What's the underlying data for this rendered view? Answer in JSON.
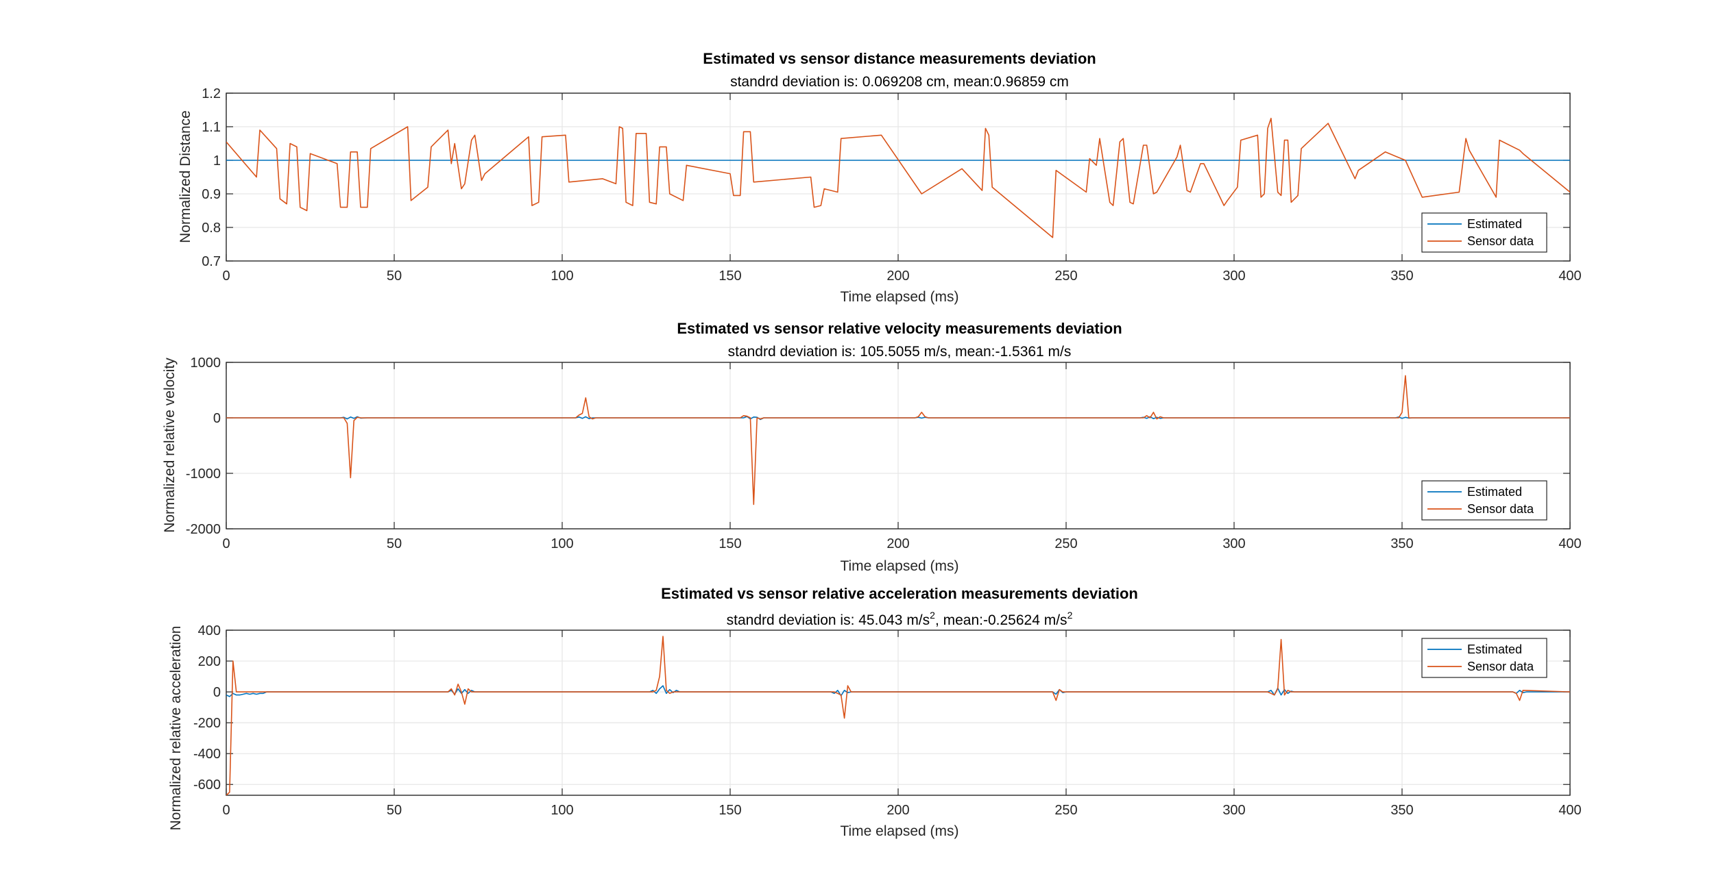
{
  "colors": {
    "estimated": "#0072BD",
    "sensor": "#D95319",
    "grid": "#e6e6e6",
    "axis": "#262626"
  },
  "chart_data": [
    {
      "type": "line",
      "title": "Estimated vs sensor distance measurements deviation",
      "subtitle": {
        "text": "standrd deviation is: 0.069208 cm, mean:0.96859 cm"
      },
      "xlabel": "Time elapsed (ms)",
      "ylabel": "Normalized Distance",
      "xlim": [
        0,
        400
      ],
      "ylim": [
        0.7,
        1.2
      ],
      "xticks": [
        0,
        50,
        100,
        150,
        200,
        250,
        300,
        350,
        400
      ],
      "xtick_labels": [
        "0",
        "50",
        "100",
        "150",
        "200",
        "250",
        "300",
        "350",
        "400"
      ],
      "yticks": [
        0.7,
        0.8,
        0.9,
        1,
        1.1,
        1.2
      ],
      "ytick_labels": [
        "0.7",
        "0.8",
        "0.9",
        "1",
        "1.1",
        "1.2"
      ],
      "grid": true,
      "legend": "bottom-right",
      "series": [
        {
          "name": "Estimated",
          "x": [
            0,
            400
          ],
          "y": [
            1,
            1
          ]
        },
        {
          "name": "Sensor data",
          "x": [
            0,
            9,
            10,
            15,
            16,
            18,
            19,
            21,
            22,
            24,
            25,
            33,
            34,
            36,
            37,
            39,
            40,
            42,
            43,
            54,
            55,
            60,
            61,
            66,
            67,
            68,
            70,
            71,
            73,
            74,
            76,
            77,
            90,
            91,
            93,
            94,
            101,
            102,
            112,
            116,
            117,
            118,
            119,
            121,
            122,
            125,
            126,
            128,
            129,
            131,
            132,
            136,
            137,
            150,
            151,
            153,
            154,
            156,
            157,
            174,
            175,
            177,
            178,
            182,
            183,
            195,
            207,
            219,
            225,
            226,
            227,
            228,
            246,
            247,
            256,
            257,
            259,
            260,
            263,
            264,
            266,
            267,
            269,
            270,
            273,
            274,
            276,
            277,
            283,
            284,
            286,
            287,
            290,
            291,
            297,
            298,
            301,
            302,
            307,
            308,
            309,
            310,
            311,
            313,
            314,
            315,
            316,
            317,
            319,
            320,
            328,
            336,
            337,
            345,
            351,
            356,
            367,
            369,
            370,
            378,
            379,
            385,
            386,
            400
          ],
          "y": [
            1.055,
            0.95,
            1.09,
            1.035,
            0.885,
            0.87,
            1.05,
            1.04,
            0.86,
            0.85,
            1.02,
            0.99,
            0.86,
            0.86,
            1.025,
            1.025,
            0.86,
            0.86,
            1.035,
            1.1,
            0.88,
            0.92,
            1.04,
            1.09,
            0.99,
            1.05,
            0.915,
            0.93,
            1.06,
            1.075,
            0.94,
            0.96,
            1.07,
            0.865,
            0.875,
            1.07,
            1.075,
            0.935,
            0.945,
            0.93,
            1.1,
            1.095,
            0.875,
            0.865,
            1.08,
            1.08,
            0.875,
            0.87,
            1.04,
            1.04,
            0.9,
            0.88,
            0.985,
            0.96,
            0.895,
            0.895,
            1.085,
            1.085,
            0.935,
            0.95,
            0.86,
            0.865,
            0.915,
            0.905,
            1.065,
            1.075,
            0.9,
            0.975,
            0.91,
            1.095,
            1.075,
            0.92,
            0.77,
            0.97,
            0.905,
            1.005,
            0.985,
            1.065,
            0.875,
            0.865,
            1.055,
            1.065,
            0.875,
            0.87,
            1.045,
            1.045,
            0.9,
            0.905,
            1.01,
            1.045,
            0.91,
            0.905,
            0.99,
            0.99,
            0.865,
            0.88,
            0.92,
            1.06,
            1.075,
            0.89,
            0.9,
            1.095,
            1.125,
            0.905,
            0.895,
            1.06,
            1.06,
            0.875,
            0.895,
            1.035,
            1.11,
            0.945,
            0.97,
            1.025,
            1.0,
            0.89,
            0.905,
            1.065,
            1.03,
            0.89,
            1.06,
            1.03,
            1.02,
            0.905
          ]
        }
      ]
    },
    {
      "type": "line",
      "title": "Estimated vs sensor relative velocity measurements deviation",
      "subtitle": {
        "text": "standrd deviation is: 105.5055 m/s, mean:-1.5361 m/s"
      },
      "xlabel": "Time elapsed (ms)",
      "ylabel": "Normalized relative velocity",
      "xlim": [
        0,
        400
      ],
      "ylim": [
        -2000,
        1000
      ],
      "xticks": [
        0,
        50,
        100,
        150,
        200,
        250,
        300,
        350,
        400
      ],
      "xtick_labels": [
        "0",
        "50",
        "100",
        "150",
        "200",
        "250",
        "300",
        "350",
        "400"
      ],
      "yticks": [
        -2000,
        -1000,
        0,
        1000
      ],
      "ytick_labels": [
        "-2000",
        "-1000",
        "0",
        "1000"
      ],
      "grid": true,
      "legend": "bottom-right",
      "series": [
        {
          "name": "Estimated",
          "x": [
            0,
            34,
            35,
            36,
            37,
            38,
            39,
            40,
            42,
            104,
            105,
            106,
            107,
            108,
            109,
            154,
            155,
            156,
            157,
            158,
            159,
            160,
            205,
            206,
            207,
            208,
            209,
            272,
            273,
            274,
            275,
            276,
            277,
            278,
            279,
            280,
            348,
            349,
            350,
            351,
            352,
            353,
            400
          ],
          "y": [
            0,
            0,
            10,
            -20,
            15,
            -10,
            20,
            -5,
            0,
            0,
            15,
            -10,
            20,
            -15,
            0,
            0,
            25,
            -20,
            15,
            10,
            -30,
            0,
            0,
            10,
            -5,
            10,
            0,
            0,
            10,
            -10,
            20,
            -15,
            10,
            -10,
            0,
            0,
            0,
            15,
            -10,
            10,
            -5,
            0,
            0
          ]
        },
        {
          "name": "Sensor data",
          "x": [
            0,
            35,
            36,
            37,
            38,
            39,
            40,
            104,
            105,
            106,
            107,
            108,
            109,
            110,
            153,
            154,
            155,
            156,
            157,
            158,
            159,
            160,
            205,
            206,
            207,
            208,
            209,
            273,
            274,
            275,
            276,
            277,
            278,
            279,
            348,
            349,
            350,
            351,
            352,
            353,
            400
          ],
          "y": [
            0,
            0,
            -100,
            -1080,
            -50,
            10,
            0,
            0,
            50,
            80,
            360,
            20,
            -20,
            0,
            0,
            40,
            30,
            0,
            -1560,
            0,
            -20,
            0,
            0,
            20,
            100,
            20,
            0,
            0,
            40,
            0,
            100,
            -20,
            20,
            0,
            0,
            0,
            100,
            760,
            0,
            0,
            0
          ]
        }
      ]
    },
    {
      "type": "line",
      "title": "Estimated vs sensor relative acceleration measurements deviation",
      "subtitle": {
        "text_before": "standrd deviation is: 45.043 m/s",
        "text_middle": ", mean:-0.25624 m/s",
        "superscript": "2"
      },
      "xlabel": "Time elapsed (ms)",
      "ylabel": "Normalized relative acceleration",
      "xlim": [
        0,
        400
      ],
      "ylim": [
        -670,
        400
      ],
      "xticks": [
        0,
        50,
        100,
        150,
        200,
        250,
        300,
        350,
        400
      ],
      "xtick_labels": [
        "0",
        "50",
        "100",
        "150",
        "200",
        "250",
        "300",
        "350",
        "400"
      ],
      "yticks": [
        -600,
        -400,
        -200,
        0,
        200,
        400
      ],
      "ytick_labels": [
        "-600",
        "-400",
        "-200",
        "0",
        "200",
        "400"
      ],
      "grid": true,
      "legend": "top-right",
      "series": [
        {
          "name": "Estimated",
          "x": [
            0,
            1,
            2,
            3,
            4,
            5,
            6,
            7,
            8,
            9,
            10,
            11,
            12,
            66,
            67,
            68,
            69,
            70,
            71,
            72,
            73,
            74,
            126,
            127,
            128,
            129,
            130,
            131,
            132,
            133,
            134,
            135,
            180,
            181,
            182,
            183,
            184,
            185,
            186,
            246,
            247,
            248,
            249,
            250,
            310,
            311,
            312,
            313,
            314,
            315,
            316,
            317,
            318,
            383,
            384,
            385,
            386,
            387,
            400
          ],
          "y": [
            -20,
            -30,
            -10,
            -20,
            -20,
            -15,
            -10,
            -15,
            -10,
            -15,
            -10,
            -10,
            0,
            0,
            10,
            -15,
            20,
            -10,
            15,
            -10,
            10,
            0,
            0,
            10,
            -10,
            20,
            40,
            -10,
            15,
            -5,
            10,
            0,
            0,
            -10,
            10,
            -25,
            10,
            -5,
            0,
            0,
            -15,
            15,
            -5,
            0,
            0,
            10,
            -20,
            25,
            -20,
            15,
            -10,
            5,
            0,
            0,
            -10,
            10,
            -5,
            0,
            0
          ]
        },
        {
          "name": "Sensor data",
          "x": [
            0,
            1,
            2,
            3,
            4,
            5,
            66,
            67,
            68,
            69,
            70,
            71,
            72,
            73,
            127,
            128,
            129,
            130,
            131,
            132,
            133,
            181,
            182,
            183,
            184,
            185,
            186,
            246,
            247,
            248,
            249,
            310,
            311,
            312,
            313,
            314,
            315,
            316,
            317,
            383,
            384,
            385,
            386,
            400
          ],
          "y": [
            -670,
            -650,
            200,
            0,
            0,
            0,
            0,
            20,
            -20,
            50,
            0,
            -80,
            20,
            0,
            0,
            10,
            100,
            360,
            10,
            -10,
            0,
            0,
            -10,
            -20,
            -170,
            40,
            0,
            0,
            -55,
            15,
            0,
            0,
            -10,
            -20,
            20,
            340,
            -20,
            10,
            0,
            0,
            -10,
            -55,
            10,
            0
          ]
        }
      ]
    }
  ]
}
